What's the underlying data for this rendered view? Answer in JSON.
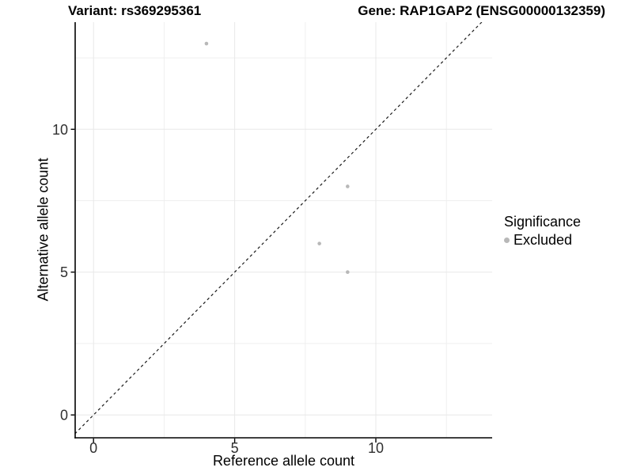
{
  "chart_data": {
    "type": "scatter",
    "titles": {
      "left": "Variant: rs369295361",
      "right": "Gene: RAP1GAP2 (ENSG00000132359)"
    },
    "xlabel": "Reference allele count",
    "ylabel": "Alternative allele count",
    "xlim": [
      -0.65,
      14.12
    ],
    "ylim": [
      -0.8,
      13.75
    ],
    "x_ticks": [
      0,
      5,
      10
    ],
    "y_ticks": [
      0,
      5,
      10
    ],
    "x_minor_ticks": [
      2.5,
      7.5,
      12.5
    ],
    "y_minor_ticks": [
      2.5,
      7.5,
      12.5
    ],
    "grid": {
      "major_color": "#e8e8e8",
      "minor_color": "#efefef"
    },
    "identity_line": {
      "show": true,
      "style": "dashed",
      "color": "#1a1a1a"
    },
    "series": [
      {
        "name": "Excluded",
        "color": "#b8b8b8",
        "points": [
          [
            4,
            13
          ],
          [
            9,
            8
          ],
          [
            8,
            6
          ],
          [
            9,
            5
          ]
        ]
      }
    ],
    "legend": {
      "title": "Significance",
      "position": "right",
      "entries": [
        {
          "label": "Excluded",
          "color": "#b8b8b8",
          "marker": "circle"
        }
      ]
    },
    "colors": {
      "axis_line": "#000000",
      "tick_label": "#303030",
      "point": "#b8b8b8"
    }
  }
}
